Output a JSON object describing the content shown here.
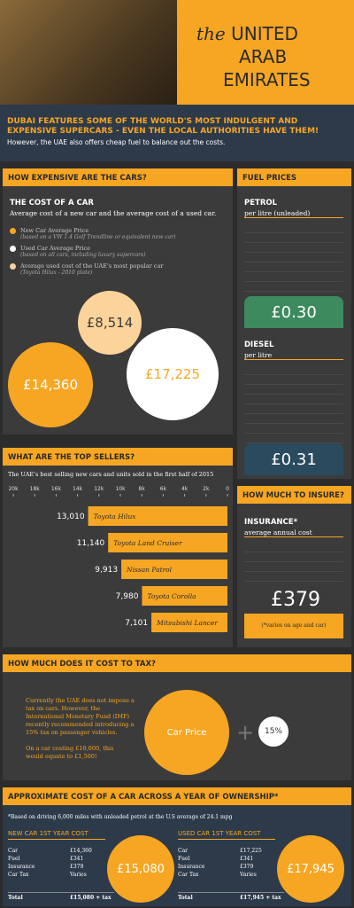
{
  "header": {
    "the": "the",
    "title": [
      "UNITED",
      "ARAB",
      "EMIRATES"
    ]
  },
  "intro": {
    "headline": "DUBAI FEATURES SOME OF THE WORLD'S MOST INDULGENT AND EXPENSIVE SUPERCARS - EVEN THE LOCAL AUTHORITIES HAVE THEM!",
    "sub": "However, the UAE also offers cheap fuel to balance out the costs."
  },
  "expensive": {
    "heading": "HOW EXPENSIVE ARE THE CARS?",
    "title": "THE COST OF A CAR",
    "desc": "Average cost of a new car and the average cost of a used car.",
    "legend": [
      {
        "label": "New Car Average Price",
        "note": "(based on a VW 1.4 Golf Trendline or equivalent new car)"
      },
      {
        "label": "Used Car Average Price",
        "note": "(based on all cars, including luxury supercars)"
      },
      {
        "label": "Average used cost of the UAE's most popular car",
        "note": "(Toyota Hilux - 2010 plate)"
      }
    ],
    "bubbles": [
      "£8,514",
      "£14,360",
      "£17,225"
    ]
  },
  "fuel": {
    "heading": "FUEL PRICES",
    "petrol": "PETROL",
    "petrol_sub": "per litre (unleaded)",
    "petrol_price": "£0.30",
    "diesel": "DIESEL",
    "diesel_sub": "per litre",
    "diesel_price": "£0.31"
  },
  "sellers": {
    "heading": "WHAT ARE THE TOP SELLERS?",
    "sub": "The UAE's best selling new cars and units sold in the first half of 2015",
    "chart_data": {
      "type": "bar",
      "categories": [
        "Toyota Hilux",
        "Toyota Land Cruiser",
        "Nissan Patrol",
        "Toyota Corolla",
        "Mitsubishi Lancer"
      ],
      "values": [
        13010,
        11140,
        9913,
        7980,
        7101
      ],
      "value_labels": [
        "13,010",
        "11,140",
        "9,913",
        "7,980",
        "7,101"
      ],
      "color": "#f6a623",
      "xlim": [
        20000,
        0
      ],
      "xticks": [
        {
          "value": 20000,
          "label": "20k"
        },
        {
          "value": 18000,
          "label": "18k"
        },
        {
          "value": 16000,
          "label": "16k"
        },
        {
          "value": 14000,
          "label": "14k"
        },
        {
          "value": 12000,
          "label": "12k"
        },
        {
          "value": 10000,
          "label": "10k"
        },
        {
          "value": 8000,
          "label": "8k"
        },
        {
          "value": 6000,
          "label": "6k"
        },
        {
          "value": 4000,
          "label": "4k"
        },
        {
          "value": 2000,
          "label": "2k"
        },
        0
      ]
    }
  },
  "insure": {
    "heading": "HOW MUCH TO INSURE?",
    "label": "INSURANCE*",
    "sub": "average annual cost",
    "price": "£379",
    "note": "(*varies on age and car)"
  },
  "tax": {
    "heading": "HOW MUCH DOES IT COST TO TAX?",
    "p1": "Currently the UAE does not impose a tax on cars. However, the International Monetary Fund (IMF) recently recommended introducing a 15% tax on passenger vehicles.",
    "p2": "On a car costing £10,000, this would equate to £1,500!",
    "circle": "Car Price",
    "pct": "15%"
  },
  "own": {
    "heading": "APPROXIMATE COST OF A CAR ACROSS A YEAR OF OWNERSHIP*",
    "note": "*Based on driving 6,000 miles with unleaded petrol at the U.S average of 24.1 mpg",
    "new": {
      "title": "NEW CAR 1ST YEAR COST",
      "rows": [
        [
          "Car",
          "£14,360"
        ],
        [
          "Fuel",
          "£341"
        ],
        [
          "Insurance",
          "£379"
        ],
        [
          "Car Tax",
          "Varies"
        ]
      ],
      "total": [
        "Total",
        "£15,080 + tax"
      ],
      "bubble": "£15,080"
    },
    "used": {
      "title": "USED CAR 1ST YEAR COST",
      "rows": [
        [
          "Car",
          "£17,225"
        ],
        [
          "Fuel",
          "£341"
        ],
        [
          "Insurance",
          "£379"
        ],
        [
          "Car Tax",
          "Varies"
        ]
      ],
      "total": [
        "Total",
        "£17,945 + tax"
      ],
      "bubble": "£17,945"
    }
  }
}
